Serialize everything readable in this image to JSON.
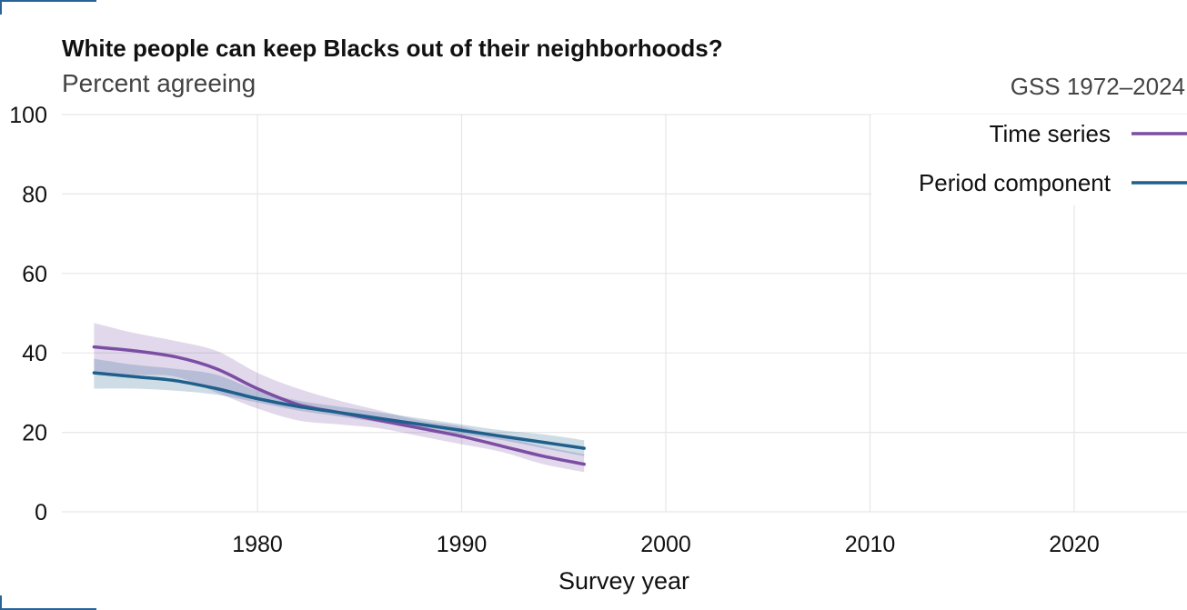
{
  "chart_data": {
    "type": "line",
    "title": "White people can keep Blacks out of their neighborhoods?",
    "subtitle": "Percent agreeing",
    "source": "GSS 1972–2024",
    "xlabel": "Survey year",
    "ylabel": "",
    "xlim": [
      1972,
      2025
    ],
    "ylim": [
      0,
      100
    ],
    "x_ticks": [
      1980,
      1990,
      2000,
      2010,
      2020
    ],
    "y_ticks": [
      0,
      20,
      40,
      60,
      80,
      100
    ],
    "grid": true,
    "legend_position": "top-right",
    "series": [
      {
        "name": "Time series",
        "color": "#7b4ea3",
        "x": [
          1972,
          1974,
          1976,
          1978,
          1980,
          1982,
          1984,
          1986,
          1988,
          1990,
          1992,
          1994,
          1996
        ],
        "values": [
          41.5,
          40.5,
          39,
          36,
          31,
          27,
          25,
          23,
          21,
          19,
          16.5,
          14,
          12
        ],
        "lower": [
          35,
          34.5,
          34,
          30,
          26,
          23,
          22,
          21,
          19,
          17,
          15,
          12,
          10
        ],
        "upper": [
          47.5,
          45,
          43,
          40.5,
          35,
          31,
          28,
          25.5,
          23,
          21.5,
          19,
          16.5,
          14.5
        ]
      },
      {
        "name": "Period component",
        "color": "#1f5f8b",
        "x": [
          1972,
          1974,
          1976,
          1978,
          1980,
          1982,
          1984,
          1986,
          1988,
          1990,
          1992,
          1994,
          1996
        ],
        "values": [
          35,
          34,
          33,
          31,
          28.5,
          26.5,
          25,
          23.5,
          22,
          20.5,
          19,
          17.5,
          16
        ],
        "lower": [
          31,
          31,
          30.5,
          29.5,
          27.5,
          25.5,
          24,
          22.5,
          21,
          19.5,
          18,
          16,
          14
        ],
        "upper": [
          38.5,
          37,
          36,
          34.5,
          30.5,
          28,
          26.5,
          25,
          23.5,
          22,
          20.5,
          19.5,
          18
        ]
      }
    ]
  }
}
